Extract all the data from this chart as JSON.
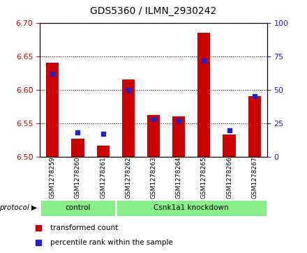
{
  "title": "GDS5360 / ILMN_2930242",
  "samples": [
    "GSM1278259",
    "GSM1278260",
    "GSM1278261",
    "GSM1278262",
    "GSM1278263",
    "GSM1278264",
    "GSM1278265",
    "GSM1278266",
    "GSM1278267"
  ],
  "transformed_count": [
    6.64,
    6.527,
    6.517,
    6.615,
    6.562,
    6.56,
    6.685,
    6.533,
    6.59
  ],
  "percentile_rank": [
    62,
    18,
    17,
    50,
    28,
    27,
    72,
    20,
    45
  ],
  "ylim": [
    6.5,
    6.7
  ],
  "y2lim": [
    0,
    100
  ],
  "yticks": [
    6.5,
    6.55,
    6.6,
    6.65,
    6.7
  ],
  "y2ticks": [
    0,
    25,
    50,
    75,
    100
  ],
  "bar_color": "#cc0000",
  "dot_color": "#2222cc",
  "bar_bottom": 6.5,
  "protocol_groups": [
    {
      "label": "control",
      "start": 0,
      "end": 3
    },
    {
      "label": "Csnk1a1 knockdown",
      "start": 3,
      "end": 9
    }
  ],
  "protocol_label": "protocol",
  "legend_items": [
    {
      "label": "transformed count",
      "color": "#cc0000"
    },
    {
      "label": "percentile rank within the sample",
      "color": "#2222cc"
    }
  ],
  "background_color": "#ffffff",
  "grid_color": "#000000",
  "tick_label_color_left": "#cc0000",
  "tick_label_color_right": "#2222cc",
  "sample_bg_color": "#cccccc",
  "group_bg_color": "#88ee88",
  "bar_width": 0.5
}
